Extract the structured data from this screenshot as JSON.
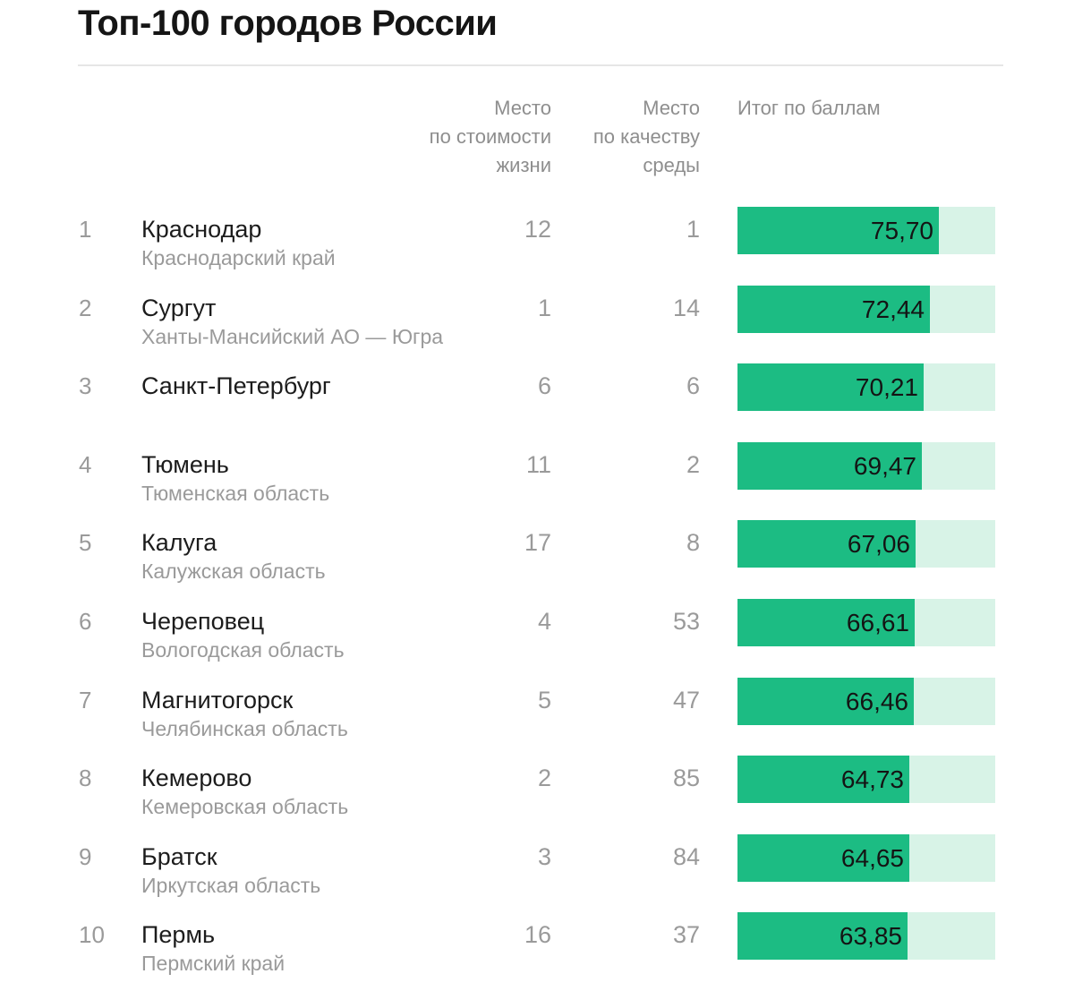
{
  "title": "Топ-100 городов России",
  "headers": {
    "cost": [
      "Место",
      "по стоимости",
      "жизни"
    ],
    "quality": [
      "Место",
      "по качеству",
      "среды"
    ],
    "total": "Итог по баллам"
  },
  "colors": {
    "bar_fill": "#1cbc83",
    "bar_track": "#d8f3e7"
  },
  "chart_data": {
    "type": "table",
    "title": "Топ-100 городов России",
    "columns": [
      "",
      "",
      "Место по стоимости жизни",
      "Место по качеству среды",
      "Итог по баллам"
    ],
    "rows": [
      {
        "rank": "1",
        "city": "Краснодар",
        "region": "Краснодарский край",
        "cost_place": "12",
        "quality_place": "1",
        "score": 75.7,
        "score_label": "75,70"
      },
      {
        "rank": "2",
        "city": "Сургут",
        "region": "Ханты-Мансийский АО — Югра",
        "cost_place": "1",
        "quality_place": "14",
        "score": 72.44,
        "score_label": "72,44"
      },
      {
        "rank": "3",
        "city": "Санкт-Петербург",
        "region": "",
        "cost_place": "6",
        "quality_place": "6",
        "score": 70.21,
        "score_label": "70,21"
      },
      {
        "rank": "4",
        "city": "Тюмень",
        "region": "Тюменская область",
        "cost_place": "11",
        "quality_place": "2",
        "score": 69.47,
        "score_label": "69,47"
      },
      {
        "rank": "5",
        "city": "Калуга",
        "region": "Калужская область",
        "cost_place": "17",
        "quality_place": "8",
        "score": 67.06,
        "score_label": "67,06"
      },
      {
        "rank": "6",
        "city": "Череповец",
        "region": "Вологодская область",
        "cost_place": "4",
        "quality_place": "53",
        "score": 66.61,
        "score_label": "66,61"
      },
      {
        "rank": "7",
        "city": "Магнитогорск",
        "region": "Челябинская область",
        "cost_place": "5",
        "quality_place": "47",
        "score": 66.46,
        "score_label": "66,46"
      },
      {
        "rank": "8",
        "city": "Кемерово",
        "region": "Кемеровская область",
        "cost_place": "2",
        "quality_place": "85",
        "score": 64.73,
        "score_label": "64,73"
      },
      {
        "rank": "9",
        "city": "Братск",
        "region": "Иркутская область",
        "cost_place": "3",
        "quality_place": "84",
        "score": 64.65,
        "score_label": "64,65"
      },
      {
        "rank": "10",
        "city": "Пермь",
        "region": "Пермский край",
        "cost_place": "16",
        "quality_place": "37",
        "score": 63.85,
        "score_label": "63,85"
      }
    ],
    "bar_scale_max": 97
  }
}
